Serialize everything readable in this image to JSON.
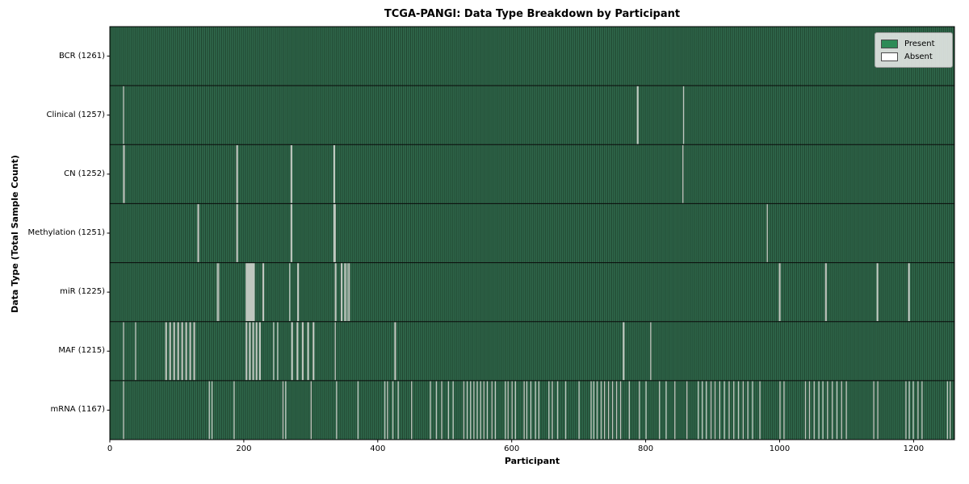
{
  "title": "TCGA-PANGI: Data Type Breakdown by Participant",
  "xlabel": "Participant",
  "ylabel": "Data Type (Total Sample Count)",
  "legend": {
    "present_label": "Present",
    "absent_label": "Absent"
  },
  "colors": {
    "present": "#2e8b57",
    "absent": "#ffffff",
    "stripe_light": "#306b4e",
    "stripe_dark": "#20452f",
    "absent_stripe": "#bfc7bf",
    "row_separator": "#0a0a0a",
    "plot_border": "#000000",
    "legend_background": "#e9ebe9"
  },
  "chart_data": {
    "type": "heatmap",
    "title": "TCGA-PANGI: Data Type Breakdown by Participant",
    "xlabel": "Participant",
    "ylabel": "Data Type (Total Sample Count)",
    "legend": [
      "Present",
      "Absent"
    ],
    "legend_position": "upper right",
    "grid": false,
    "n_participants": 1261,
    "x_ticks": [
      0,
      200,
      400,
      600,
      800,
      1000,
      1200
    ],
    "x_tick_labels": [
      "0",
      "200",
      "400",
      "600",
      "800",
      "1000",
      "1200"
    ],
    "rows": [
      {
        "label": "BCR (1261)",
        "name": "BCR",
        "total": 1261,
        "absent": []
      },
      {
        "label": "Clinical (1257)",
        "name": "Clinical",
        "total": 1257,
        "absent": [
          20,
          787,
          788,
          856
        ]
      },
      {
        "label": "CN (1252)",
        "name": "CN",
        "total": 1252,
        "absent": [
          20,
          21,
          189,
          190,
          270,
          271,
          334,
          335,
          855
        ]
      },
      {
        "label": "Methylation (1251)",
        "name": "Methylation",
        "total": 1251,
        "absent": [
          131,
          132,
          189,
          190,
          270,
          271,
          334,
          335,
          336,
          981
        ]
      },
      {
        "label": "miR (1225)",
        "name": "miR",
        "total": 1225,
        "absent": [
          160,
          162,
          203,
          204,
          205,
          206,
          207,
          208,
          209,
          210,
          211,
          212,
          213,
          214,
          215,
          228,
          229,
          268,
          280,
          281,
          336,
          337,
          345,
          346,
          350,
          352,
          355,
          357,
          999,
          1000,
          1068,
          1069,
          1145,
          1146,
          1192,
          1193
        ]
      },
      {
        "label": "MAF (1215)",
        "name": "MAF",
        "total": 1215,
        "absent": [
          20,
          38,
          83,
          84,
          89,
          90,
          95,
          96,
          101,
          102,
          107,
          108,
          113,
          114,
          119,
          120,
          125,
          126,
          203,
          204,
          208,
          209,
          213,
          214,
          218,
          219,
          223,
          224,
          244,
          250,
          271,
          272,
          279,
          280,
          287,
          288,
          295,
          296,
          303,
          304,
          336,
          425,
          426,
          766,
          767,
          807
        ]
      },
      {
        "label": "mRNA (1167)",
        "name": "mRNA",
        "total": 1167,
        "absent": [
          20,
          148,
          152,
          185,
          258,
          262,
          300,
          338,
          370,
          410,
          414,
          422,
          430,
          450,
          478,
          487,
          495,
          505,
          512,
          528,
          533,
          538,
          543,
          548,
          553,
          558,
          563,
          570,
          575,
          590,
          594,
          600,
          605,
          618,
          622,
          628,
          635,
          640,
          655,
          660,
          668,
          680,
          700,
          718,
          722,
          727,
          733,
          738,
          744,
          750,
          756,
          762,
          775,
          790,
          800,
          820,
          830,
          843,
          861,
          878,
          884,
          890,
          897,
          903,
          910,
          917,
          924,
          931,
          938,
          945,
          952,
          959,
          970,
          1000,
          1006,
          1038,
          1044,
          1051,
          1058,
          1064,
          1071,
          1078,
          1085,
          1092,
          1099,
          1140,
          1146,
          1188,
          1193,
          1199,
          1206,
          1212,
          1250,
          1254
        ]
      }
    ]
  }
}
